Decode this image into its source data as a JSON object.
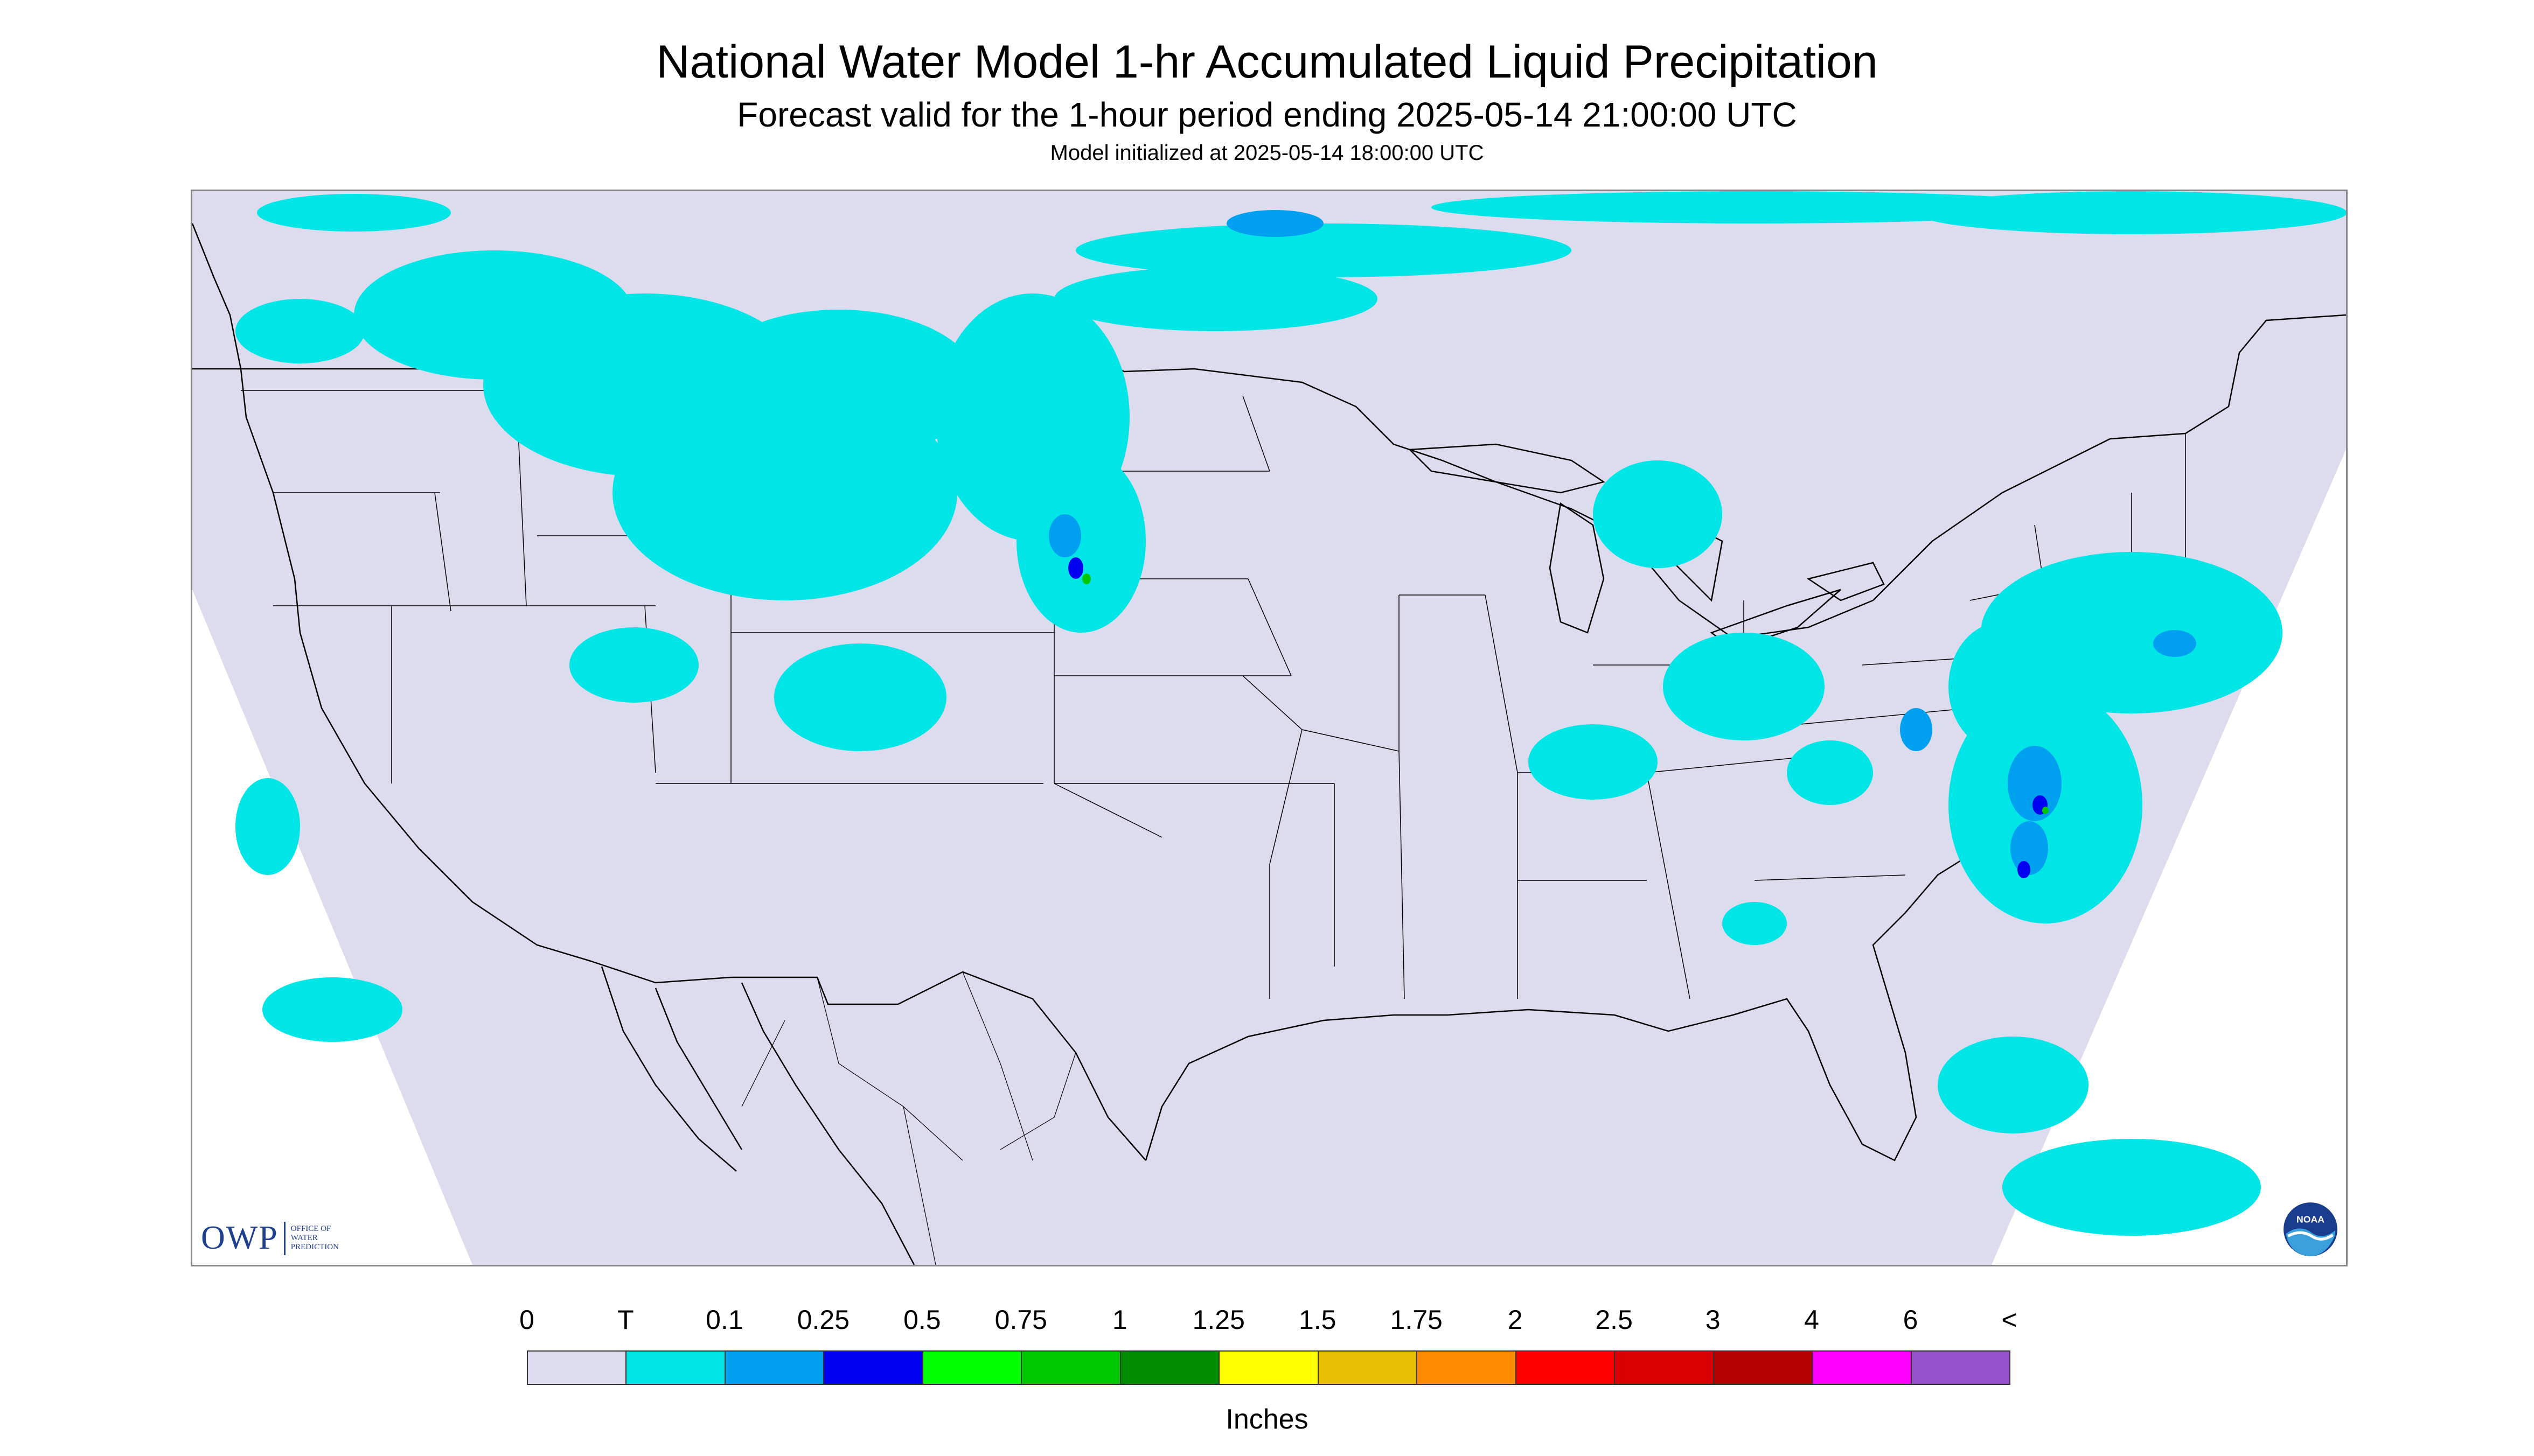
{
  "header": {
    "title": "National Water Model 1-hr Accumulated Liquid Precipitation",
    "subtitle": "Forecast valid for the 1-hour period ending 2025-05-14 21:00:00 UTC",
    "init_text": "Model initialized at 2025-05-14 18:00:00 UTC"
  },
  "map": {
    "background_color": "#dcdcee",
    "outside_color": "#ffffff",
    "region": "CONUS"
  },
  "logos": {
    "owp_letters": "OWP",
    "owp_lines": [
      "OFFICE OF",
      "WATER",
      "PREDICTION"
    ],
    "noaa_text": "NOAA"
  },
  "legend": {
    "labels": [
      "0",
      "T",
      "0.1",
      "0.25",
      "0.5",
      "0.75",
      "1",
      "1.25",
      "1.5",
      "1.75",
      "2",
      "2.5",
      "3",
      "4",
      "6",
      "<"
    ],
    "colors": [
      "#dcdcee",
      "#00e6e6",
      "#00a0f0",
      "#0000f0",
      "#00ff00",
      "#00c800",
      "#008c00",
      "#ffff00",
      "#e6be00",
      "#ff8c00",
      "#ff0000",
      "#d80000",
      "#b40000",
      "#ff00ff",
      "#9650c8"
    ],
    "units": "Inches"
  }
}
